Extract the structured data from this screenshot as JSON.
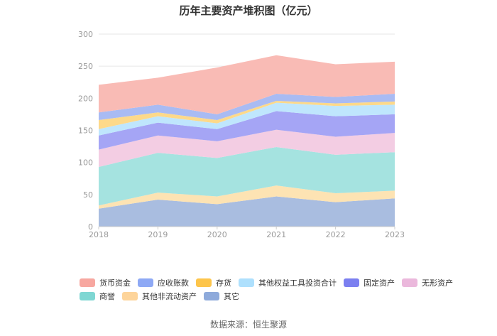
{
  "chart_data": {
    "type": "area",
    "stacked": true,
    "title": "历年主要资产堆积图（亿元）",
    "categories": [
      "2018",
      "2019",
      "2020",
      "2021",
      "2022",
      "2023"
    ],
    "ylim": [
      0,
      300
    ],
    "yticks": [
      "0",
      "50",
      "100",
      "150",
      "200",
      "250",
      "300"
    ],
    "grid": true,
    "legend_position": "bottom",
    "series": [
      {
        "name": "其它",
        "color": "#a9bde0",
        "values": [
          28,
          42,
          35,
          47,
          38,
          44
        ]
      },
      {
        "name": "其他非流动资产",
        "color": "#fde3b3",
        "values": [
          5,
          11,
          12,
          17,
          14,
          12
        ]
      },
      {
        "name": "商誉",
        "color": "#a5e3e0",
        "values": [
          60,
          62,
          60,
          60,
          60,
          60
        ]
      },
      {
        "name": "无形资产",
        "color": "#f3cde3",
        "values": [
          27,
          27,
          26,
          27,
          28,
          30
        ]
      },
      {
        "name": "固定资产",
        "color": "#a5a5f5",
        "values": [
          22,
          20,
          19,
          29,
          32,
          29
        ]
      },
      {
        "name": "其他权益工具投资合计",
        "color": "#bfe6fd",
        "values": [
          10,
          10,
          9,
          13,
          16,
          15
        ]
      },
      {
        "name": "存货",
        "color": "#fdd98a",
        "values": [
          14,
          6,
          5,
          3,
          4,
          5
        ]
      },
      {
        "name": "应收账款",
        "color": "#a9bbf3",
        "values": [
          12,
          12,
          9,
          11,
          10,
          12
        ]
      },
      {
        "name": "货币资金",
        "color": "#f9bbb5",
        "values": [
          43,
          42,
          73,
          60,
          51,
          50
        ]
      }
    ],
    "legend_rows": [
      [
        {
          "name": "货币资金",
          "color": "#f7a7a0"
        },
        {
          "name": "应收账款",
          "color": "#8ea9f5"
        },
        {
          "name": "存货",
          "color": "#fdc54b"
        },
        {
          "name": "其他权益工具投资合计",
          "color": "#aee0fd"
        },
        {
          "name": "固定资产",
          "color": "#7b7ff0"
        },
        {
          "name": "无形资产",
          "color": "#ebb8dc"
        }
      ],
      [
        {
          "name": "商誉",
          "color": "#7fd7d3"
        },
        {
          "name": "其他非流动资产",
          "color": "#fdd49a"
        },
        {
          "name": "其它",
          "color": "#8eaadb"
        }
      ]
    ]
  },
  "source": "数据来源：恒生聚源"
}
